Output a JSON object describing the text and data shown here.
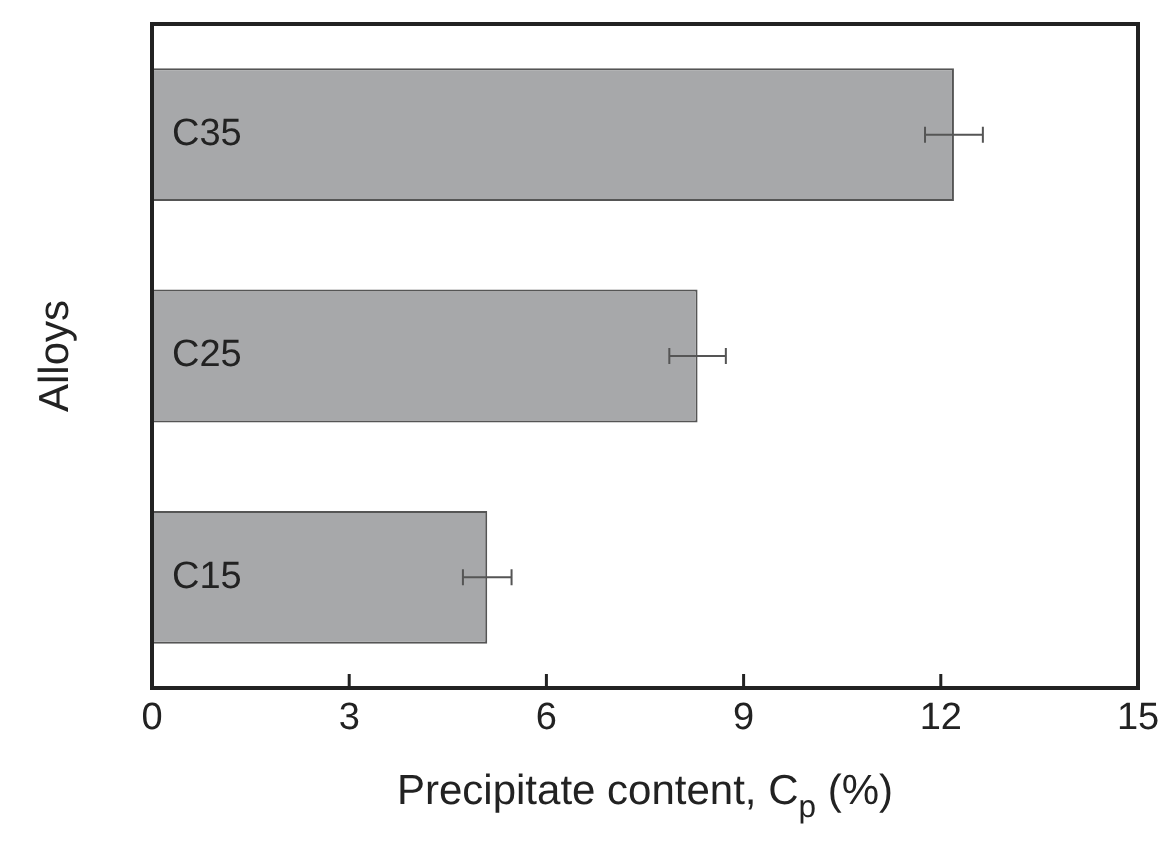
{
  "chart_data": {
    "type": "bar",
    "orientation": "horizontal",
    "categories": [
      "C35",
      "C25",
      "C15"
    ],
    "values": [
      12.2,
      8.3,
      5.1
    ],
    "errors": [
      0.44,
      0.43,
      0.37
    ],
    "color": "#a7a8aa",
    "xlabel": "Precipitate content, C$_{p}$ (%)",
    "ylabel": "Alloys",
    "xlim": [
      0,
      15
    ],
    "xticks": [
      0,
      3,
      6,
      9,
      12,
      15
    ],
    "grid": false
  }
}
